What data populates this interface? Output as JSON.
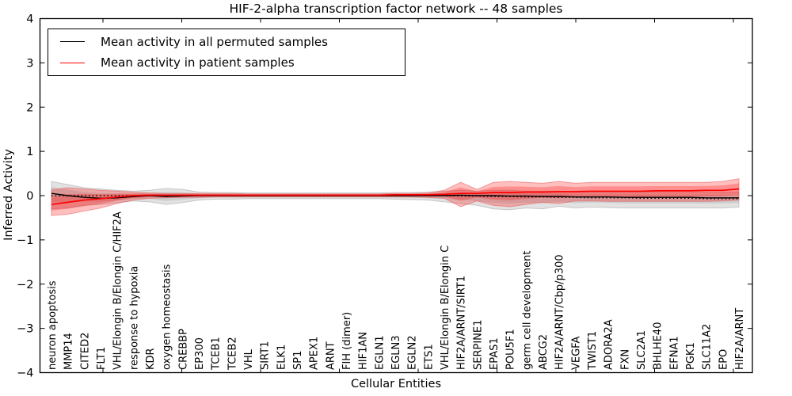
{
  "chart_data": {
    "type": "line",
    "title": "HIF-2-alpha transcription factor network -- 48 samples",
    "xlabel": "Cellular Entities",
    "ylabel": "Inferred Activity",
    "ylim": [
      -4,
      4
    ],
    "grid": false,
    "ytick_values": [
      4,
      3,
      2,
      1,
      0,
      -1,
      -2,
      -3,
      -4
    ],
    "ytick_labels": [
      "4",
      "3",
      "2",
      "1",
      "0",
      "−1",
      "−2",
      "−3",
      "−4"
    ],
    "categories": [
      "neuron apoptosis",
      "MMP14",
      "CITED2",
      "FLT1",
      "VHL/Elongin B/Elongin C/HIF2A",
      "response to hypoxia",
      "KDR",
      "oxygen homeostasis",
      "CREBBP",
      "EP300",
      "TCEB1",
      "TCEB2",
      "VHL",
      "SIRT1",
      "ELK1",
      "SP1",
      "APEX1",
      "ARNT",
      "FIH (dimer)",
      "HIF1AN",
      "EGLN1",
      "EGLN3",
      "EGLN2",
      "ETS1",
      "VHL/Elongin B/Elongin C",
      "HIF2A/ARNT/SIRT1",
      "SERPINE1",
      "EPAS1",
      "POU5F1",
      "germ cell development",
      "ABCG2",
      "HIF2A/ARNT/Cbp/p300",
      "VEGFA",
      "TWIST1",
      "ADORA2A",
      "FXN",
      "SLC2A1",
      "BHLHE40",
      "EFNA1",
      "PGK1",
      "SLC11A2",
      "EPO",
      "HIF2A/ARNT"
    ],
    "series": [
      {
        "name": "Mean activity in all permuted samples",
        "color": "#000000",
        "style": "solid",
        "values": [
          0.05,
          0.0,
          -0.04,
          -0.06,
          -0.05,
          -0.02,
          0.0,
          -0.02,
          -0.01,
          0.0,
          0.0,
          0.0,
          0.0,
          0.0,
          0.0,
          0.0,
          0.0,
          0.0,
          0.0,
          0.0,
          0.0,
          0.0,
          0.0,
          0.0,
          0.0,
          0.01,
          0.0,
          0.0,
          -0.01,
          -0.01,
          -0.02,
          -0.02,
          -0.03,
          -0.03,
          -0.03,
          -0.04,
          -0.04,
          -0.04,
          -0.04,
          -0.04,
          -0.05,
          -0.05,
          -0.05
        ]
      },
      {
        "name": "Mean activity in patient samples",
        "color": "#ff0000",
        "style": "solid",
        "values": [
          -0.2,
          -0.15,
          -0.1,
          -0.07,
          -0.03,
          0.0,
          0.01,
          0.01,
          0.01,
          0.01,
          0.01,
          0.01,
          0.01,
          0.01,
          0.01,
          0.01,
          0.01,
          0.01,
          0.01,
          0.01,
          0.01,
          0.02,
          0.02,
          0.02,
          0.03,
          0.05,
          0.05,
          0.07,
          0.07,
          0.08,
          0.08,
          0.09,
          0.09,
          0.1,
          0.1,
          0.1,
          0.1,
          0.11,
          0.11,
          0.11,
          0.12,
          0.12,
          0.15
        ]
      },
      {
        "name": "zero-reference (dotted)",
        "color": "#000000",
        "style": "dotted",
        "values": [
          0.0,
          0.0,
          0.0,
          0.0,
          0.0,
          0.0,
          0.0,
          0.0,
          0.0,
          0.0,
          0.0,
          0.0,
          0.0,
          0.0,
          0.0,
          0.0,
          0.0,
          0.0,
          0.0,
          0.0,
          0.0,
          0.0,
          0.0,
          0.0,
          0.0,
          -0.01,
          -0.01,
          -0.02,
          -0.02,
          -0.03,
          -0.03,
          -0.04,
          -0.04,
          -0.05,
          -0.05,
          -0.05,
          -0.06,
          -0.06,
          -0.06,
          -0.06,
          -0.07,
          -0.07,
          -0.07
        ]
      }
    ],
    "bands": [
      {
        "name": "permuted-samples-activity-spread",
        "color": "#a0a0a0",
        "mean_series": 0,
        "upper": [
          0.32,
          0.25,
          0.18,
          0.15,
          0.12,
          0.1,
          0.12,
          0.16,
          0.14,
          0.08,
          0.07,
          0.07,
          0.06,
          0.06,
          0.06,
          0.06,
          0.06,
          0.06,
          0.06,
          0.06,
          0.06,
          0.07,
          0.07,
          0.08,
          0.1,
          0.12,
          0.1,
          0.12,
          0.12,
          0.1,
          0.1,
          0.1,
          0.08,
          0.08,
          0.08,
          0.08,
          0.08,
          0.08,
          0.08,
          0.08,
          0.08,
          0.08,
          0.08
        ],
        "lower": [
          -0.3,
          -0.28,
          -0.22,
          -0.2,
          -0.16,
          -0.12,
          -0.14,
          -0.2,
          -0.16,
          -0.1,
          -0.08,
          -0.08,
          -0.07,
          -0.07,
          -0.07,
          -0.07,
          -0.07,
          -0.07,
          -0.07,
          -0.07,
          -0.07,
          -0.08,
          -0.09,
          -0.1,
          -0.14,
          -0.18,
          -0.22,
          -0.3,
          -0.32,
          -0.28,
          -0.3,
          -0.24,
          -0.28,
          -0.26,
          -0.27,
          -0.28,
          -0.28,
          -0.28,
          -0.28,
          -0.28,
          -0.28,
          -0.28,
          -0.26
        ]
      },
      {
        "name": "patient-samples-activity-spread",
        "color": "#ff0000",
        "mean_series": 1,
        "upper": [
          0.13,
          0.18,
          0.15,
          0.12,
          0.1,
          0.08,
          0.06,
          0.05,
          0.05,
          0.05,
          0.05,
          0.05,
          0.04,
          0.04,
          0.04,
          0.04,
          0.04,
          0.04,
          0.04,
          0.04,
          0.04,
          0.05,
          0.05,
          0.06,
          0.12,
          0.3,
          0.14,
          0.3,
          0.32,
          0.3,
          0.28,
          0.32,
          0.28,
          0.3,
          0.3,
          0.3,
          0.3,
          0.3,
          0.3,
          0.3,
          0.3,
          0.32,
          0.38
        ],
        "lower": [
          -0.45,
          -0.42,
          -0.35,
          -0.28,
          -0.18,
          -0.1,
          -0.06,
          -0.05,
          -0.04,
          -0.04,
          -0.03,
          -0.03,
          -0.03,
          -0.03,
          -0.03,
          -0.03,
          -0.03,
          -0.03,
          -0.03,
          -0.03,
          -0.03,
          -0.03,
          -0.03,
          -0.04,
          -0.06,
          -0.25,
          -0.12,
          -0.22,
          -0.25,
          -0.2,
          -0.15,
          -0.18,
          -0.12,
          -0.12,
          -0.13,
          -0.13,
          -0.13,
          -0.13,
          -0.13,
          -0.13,
          -0.13,
          -0.12,
          -0.1
        ]
      }
    ],
    "legend": {
      "position": "upper left",
      "entries": [
        {
          "label": "Mean activity in all permuted samples",
          "color": "#000000"
        },
        {
          "label": "Mean activity in patient samples",
          "color": "#ff0000"
        }
      ]
    }
  }
}
